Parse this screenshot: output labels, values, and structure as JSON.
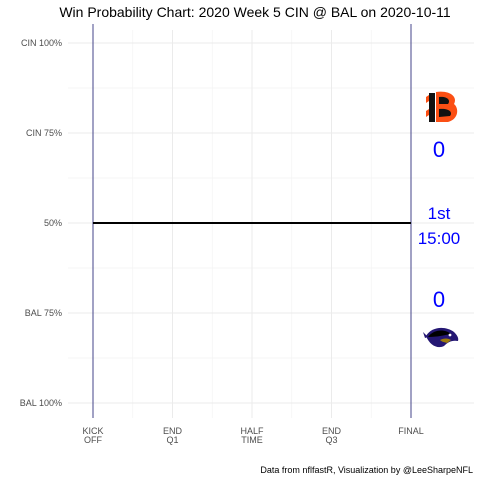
{
  "chart_data": {
    "type": "line",
    "title": "Win Probability Chart: 2020 Week 5 CIN @ BAL on 2020-10-11",
    "caption": "Data from nflfastR, Visualization by @LeeSharpeNFL",
    "x_ticks": [
      {
        "pos": 0,
        "label": [
          "KICK",
          "OFF"
        ]
      },
      {
        "pos": 1,
        "label": [
          "END",
          "Q1"
        ]
      },
      {
        "pos": 2,
        "label": [
          "HALF",
          "TIME"
        ]
      },
      {
        "pos": 3,
        "label": [
          "END",
          "Q3"
        ]
      },
      {
        "pos": 4,
        "label": [
          "FINAL"
        ]
      }
    ],
    "y_ticks": [
      {
        "value": 1.0,
        "label": "CIN 100%"
      },
      {
        "value": 0.75,
        "label": "CIN 75%"
      },
      {
        "value": 0.5,
        "label": "50%"
      },
      {
        "value": 0.25,
        "label": "BAL 75%"
      },
      {
        "value": 0.0,
        "label": "BAL 100%"
      }
    ],
    "xlim": [
      0,
      4.75
    ],
    "ylim": [
      0,
      1
    ],
    "series": [
      {
        "x": [
          0,
          4
        ],
        "y": [
          0.5,
          0.5
        ]
      }
    ],
    "vertical_lines": [
      0,
      4
    ],
    "away_team": {
      "abbr": "CIN",
      "score": "0",
      "logo": "bengals-logo",
      "color": "#fb4f14"
    },
    "home_team": {
      "abbr": "BAL",
      "score": "0",
      "logo": "ravens-logo",
      "color": "#241773"
    },
    "game_clock": {
      "quarter": "1st",
      "time": "15:00"
    }
  }
}
